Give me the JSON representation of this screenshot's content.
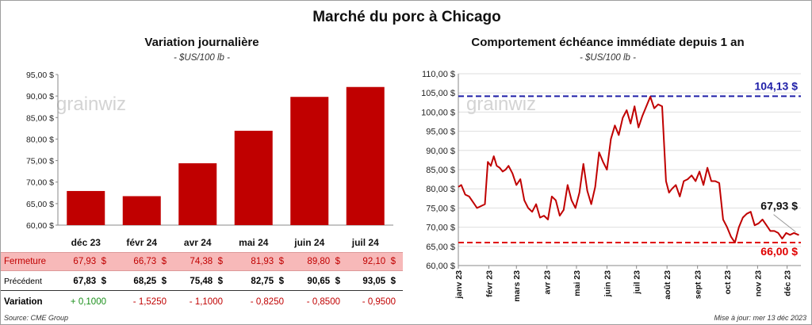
{
  "title": "Marché du porc à Chicago",
  "left_panel": {
    "title": "Variation  journalière",
    "subtitle": "- $US/100 lb -",
    "watermark": "grainwiz"
  },
  "right_panel": {
    "title": "Comportement  échéance immédiate depuis 1 an",
    "subtitle": "- $US/100 lb -",
    "watermark": "grainwiz",
    "annotations": {
      "high": "104,13 $",
      "last": "67,93 $",
      "low": "66,00 $"
    }
  },
  "table": {
    "rows": [
      {
        "label": "Fermeture",
        "values": [
          "67,93  $",
          "66,73  $",
          "74,38  $",
          "81,93  $",
          "89,80  $",
          "92,10  $"
        ]
      },
      {
        "label": "Précédent",
        "values": [
          "67,83  $",
          "68,25  $",
          "75,48  $",
          "82,75  $",
          "90,65  $",
          "93,05  $"
        ]
      },
      {
        "label": "Variation",
        "values": [
          "+ 0,1000",
          "- 1,5250",
          "- 1,1000",
          "- 0,8250",
          "- 0,8500",
          "- 0,9500"
        ]
      }
    ]
  },
  "footer": {
    "source": "Source: CME Group",
    "updated": "Mise à jour: mer 13 déc 2023"
  },
  "colors": {
    "bar": "#c00000",
    "line": "#c00000",
    "high_line": "#1f1fa8",
    "low_line": "#e00000",
    "fermeture_bg": "#f7b9b9",
    "positive": "#1a8f1a",
    "negative": "#c00000"
  },
  "chart_data": [
    {
      "type": "bar",
      "title": "Variation  journalière",
      "subtitle": "- $US/100 lb -",
      "categories": [
        "déc 23",
        "févr 24",
        "avr 24",
        "mai 24",
        "juin 24",
        "juil 24"
      ],
      "values": [
        67.93,
        66.73,
        74.38,
        81.93,
        89.8,
        92.1
      ],
      "ylim": [
        60,
        95
      ],
      "yticks": [
        "60,00 $",
        "65,00 $",
        "70,00 $",
        "75,00 $",
        "80,00 $",
        "85,00 $",
        "90,00 $",
        "95,00 $"
      ],
      "grid": false
    },
    {
      "type": "line",
      "title": "Comportement  échéance immédiate depuis 1 an",
      "subtitle": "- $US/100 lb -",
      "xlim": [
        "2023-01-01",
        "2023-12-15"
      ],
      "ylim": [
        60,
        110
      ],
      "yticks": [
        "60,00 $",
        "65,00 $",
        "70,00 $",
        "75,00 $",
        "80,00 $",
        "85,00 $",
        "90,00 $",
        "95,00 $",
        "100,00 $",
        "105,00 $",
        "110,00 $"
      ],
      "xticks": [
        "janv 23",
        "févr 23",
        "mars 23",
        "avr 23",
        "mai 23",
        "juin 23",
        "juil 23",
        "août 23",
        "sept 23",
        "oct 23",
        "nov 23",
        "déc 23"
      ],
      "grid": true,
      "reference_lines": [
        {
          "value": 104.13
        },
        {
          "value": 66.0
        }
      ],
      "x": [
        "2023-01-01",
        "2023-01-04",
        "2023-01-08",
        "2023-01-12",
        "2023-01-16",
        "2023-01-20",
        "2023-01-24",
        "2023-01-28",
        "2023-01-31",
        "2023-02-03",
        "2023-02-06",
        "2023-02-09",
        "2023-02-12",
        "2023-02-15",
        "2023-02-18",
        "2023-02-21",
        "2023-02-25",
        "2023-03-01",
        "2023-03-05",
        "2023-03-09",
        "2023-03-13",
        "2023-03-17",
        "2023-03-21",
        "2023-03-25",
        "2023-03-29",
        "2023-04-02",
        "2023-04-06",
        "2023-04-10",
        "2023-04-14",
        "2023-04-18",
        "2023-04-22",
        "2023-04-26",
        "2023-04-30",
        "2023-05-04",
        "2023-05-08",
        "2023-05-12",
        "2023-05-16",
        "2023-05-20",
        "2023-05-24",
        "2023-05-28",
        "2023-06-01",
        "2023-06-05",
        "2023-06-09",
        "2023-06-13",
        "2023-06-17",
        "2023-06-21",
        "2023-06-25",
        "2023-06-29",
        "2023-07-03",
        "2023-07-07",
        "2023-07-11",
        "2023-07-15",
        "2023-07-19",
        "2023-07-23",
        "2023-07-27",
        "2023-07-31",
        "2023-08-03",
        "2023-08-06",
        "2023-08-10",
        "2023-08-14",
        "2023-08-18",
        "2023-08-22",
        "2023-08-26",
        "2023-08-30",
        "2023-09-03",
        "2023-09-07",
        "2023-09-11",
        "2023-09-15",
        "2023-09-19",
        "2023-09-23",
        "2023-09-27",
        "2023-10-01",
        "2023-10-05",
        "2023-10-09",
        "2023-10-13",
        "2023-10-17",
        "2023-10-21",
        "2023-10-25",
        "2023-10-29",
        "2023-11-02",
        "2023-11-06",
        "2023-11-10",
        "2023-11-14",
        "2023-11-18",
        "2023-11-22",
        "2023-11-26",
        "2023-11-30",
        "2023-12-04",
        "2023-12-08",
        "2023-12-13"
      ],
      "values": [
        80.5,
        81.0,
        78.5,
        78.0,
        76.5,
        75.0,
        75.5,
        76.0,
        87.0,
        86.0,
        88.5,
        86.0,
        85.5,
        84.5,
        85.0,
        86.0,
        84.0,
        81.0,
        82.5,
        77.0,
        75.0,
        74.0,
        76.0,
        72.5,
        73.0,
        72.0,
        78.0,
        77.0,
        73.0,
        74.5,
        81.0,
        77.0,
        75.0,
        79.0,
        86.5,
        79.5,
        76.0,
        80.5,
        89.5,
        87.0,
        85.0,
        93.0,
        96.5,
        94.0,
        98.5,
        100.5,
        97.0,
        101.5,
        96.0,
        99.0,
        101.5,
        104.0,
        101.0,
        102.0,
        101.5,
        82.0,
        79.0,
        80.0,
        81.0,
        78.0,
        82.0,
        82.5,
        83.5,
        82.0,
        84.5,
        81.0,
        85.5,
        82.0,
        82.0,
        81.5,
        72.0,
        70.0,
        67.5,
        66.0,
        70.0,
        72.5,
        73.5,
        74.0,
        70.5,
        71.0,
        72.0,
        70.5,
        69.0,
        69.0,
        68.5,
        67.0,
        68.5,
        68.0,
        68.5,
        67.93
      ]
    }
  ]
}
